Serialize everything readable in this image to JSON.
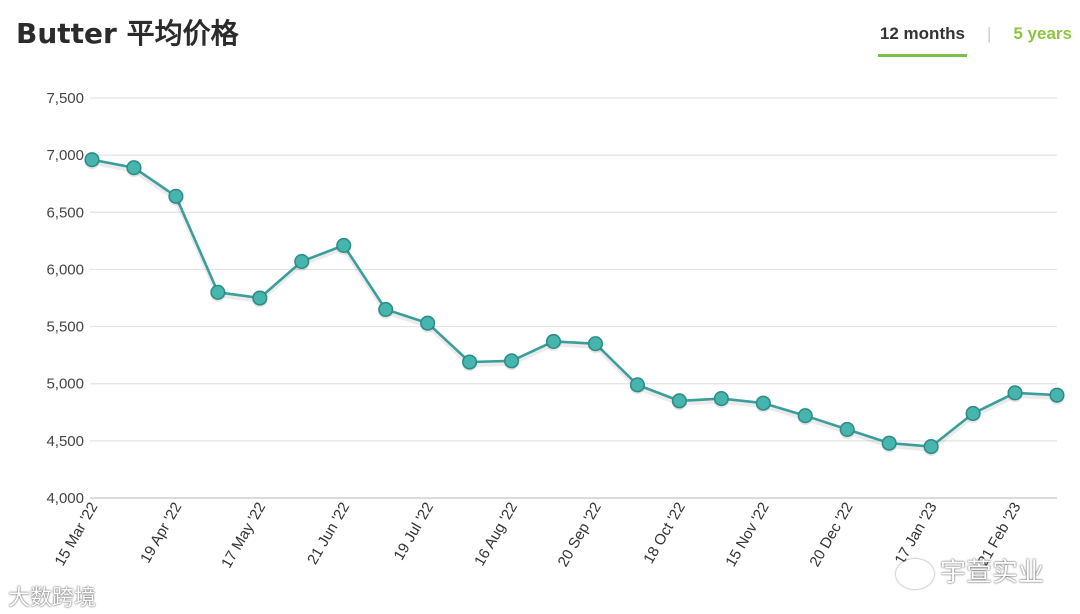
{
  "header": {
    "title": "Butter 平均价格",
    "tabs": [
      {
        "label": "12 months",
        "active": true
      },
      {
        "label": "5 years",
        "active": false
      }
    ],
    "separator": "|"
  },
  "watermarks": {
    "right": "宇萱实业",
    "left": "大数跨境"
  },
  "colors": {
    "line": "#3a9e9a",
    "marker_fill": "#45b5ae",
    "marker_stroke": "#2e8a85",
    "grid": "#e3e3e3",
    "tab_active_underline": "#7cbf4c",
    "tab_inactive": "#8cc63f"
  },
  "chart_data": {
    "type": "line",
    "title": "Butter 平均价格",
    "xlabel": "",
    "ylabel": "",
    "ylim": [
      4000,
      7500
    ],
    "yticks": [
      4000,
      4500,
      5000,
      5500,
      6000,
      6500,
      7000,
      7500
    ],
    "ytick_labels": [
      "4,000",
      "4,500",
      "5,000",
      "5,500",
      "6,000",
      "6,500",
      "7,000",
      "7,500"
    ],
    "grid": true,
    "legend": "none",
    "xtick_labels": [
      {
        "index": 0,
        "label": "15 Mar '22"
      },
      {
        "index": 2,
        "label": "19 Apr '22"
      },
      {
        "index": 4,
        "label": "17 May '22"
      },
      {
        "index": 6,
        "label": "21 Jun '22"
      },
      {
        "index": 8,
        "label": "19 Jul '22"
      },
      {
        "index": 10,
        "label": "16 Aug '22"
      },
      {
        "index": 12,
        "label": "20 Sep '22"
      },
      {
        "index": 14,
        "label": "18 Oct '22"
      },
      {
        "index": 16,
        "label": "15 Nov '22"
      },
      {
        "index": 18,
        "label": "20 Dec '22"
      },
      {
        "index": 20,
        "label": "17 Jan '23"
      },
      {
        "index": 22,
        "label": "21 Feb '23"
      }
    ],
    "series": [
      {
        "values": [
          6960,
          6890,
          6640,
          5800,
          5750,
          6070,
          6210,
          5650,
          5530,
          5190,
          5200,
          5370,
          5350,
          4990,
          4850,
          4870,
          4830,
          4720,
          4600,
          4480,
          4450,
          4740,
          4920,
          4900
        ]
      }
    ]
  }
}
